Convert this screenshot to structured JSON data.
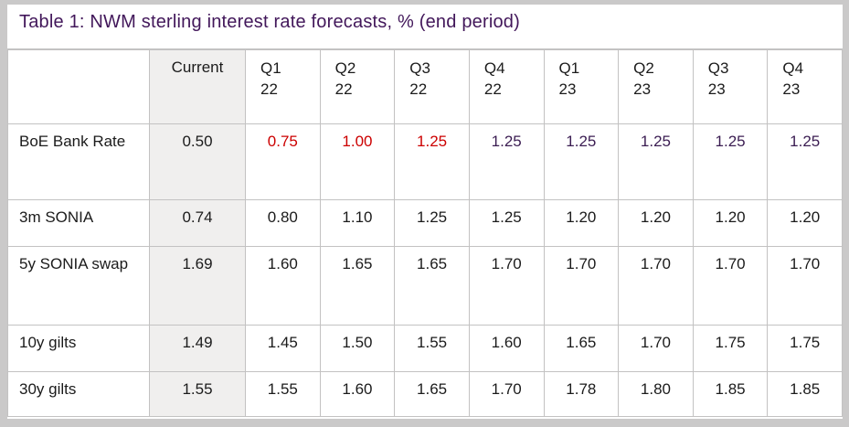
{
  "title": "Table 1: NWM sterling interest rate forecasts, % (end period)",
  "colors": {
    "title_purple": "#42175a",
    "value_purple": "#3b1d52",
    "value_red": "#cc0000",
    "grid": "#c3c2c2",
    "frame": "#cac9c9",
    "current_column_bg": "#f0efee",
    "text": "#1b1b1b"
  },
  "table": {
    "header": [
      "",
      "Current",
      "Q1\n22",
      "Q2\n22",
      "Q3\n22",
      "Q4\n22",
      "Q1\n23",
      "Q2\n23",
      "Q3\n23",
      "Q4\n23"
    ],
    "rows": [
      {
        "label": "BoE Bank Rate",
        "cells": [
          {
            "text": "0.50",
            "color": "black"
          },
          {
            "text": "0.75",
            "color": "red"
          },
          {
            "text": "1.00",
            "color": "red"
          },
          {
            "text": "1.25",
            "color": "red"
          },
          {
            "text": "1.25",
            "color": "purple"
          },
          {
            "text": "1.25",
            "color": "purple"
          },
          {
            "text": "1.25",
            "color": "purple"
          },
          {
            "text": "1.25",
            "color": "purple"
          },
          {
            "text": "1.25",
            "color": "purple"
          }
        ]
      },
      {
        "label": "3m SONIA",
        "cells": [
          {
            "text": "0.74",
            "color": "black"
          },
          {
            "text": "0.80",
            "color": "black"
          },
          {
            "text": "1.10",
            "color": "black"
          },
          {
            "text": "1.25",
            "color": "black"
          },
          {
            "text": "1.25",
            "color": "black"
          },
          {
            "text": "1.20",
            "color": "black"
          },
          {
            "text": "1.20",
            "color": "black"
          },
          {
            "text": "1.20",
            "color": "black"
          },
          {
            "text": "1.20",
            "color": "black"
          }
        ]
      },
      {
        "label": "5y SONIA swap",
        "cells": [
          {
            "text": "1.69",
            "color": "black"
          },
          {
            "text": "1.60",
            "color": "black"
          },
          {
            "text": "1.65",
            "color": "black"
          },
          {
            "text": "1.65",
            "color": "black"
          },
          {
            "text": "1.70",
            "color": "black"
          },
          {
            "text": "1.70",
            "color": "black"
          },
          {
            "text": "1.70",
            "color": "black"
          },
          {
            "text": "1.70",
            "color": "black"
          },
          {
            "text": "1.70",
            "color": "black"
          }
        ]
      },
      {
        "label": "10y gilts",
        "cells": [
          {
            "text": "1.49",
            "color": "black"
          },
          {
            "text": "1.45",
            "color": "black"
          },
          {
            "text": "1.50",
            "color": "black"
          },
          {
            "text": "1.55",
            "color": "black"
          },
          {
            "text": "1.60",
            "color": "black"
          },
          {
            "text": "1.65",
            "color": "black"
          },
          {
            "text": "1.70",
            "color": "black"
          },
          {
            "text": "1.75",
            "color": "black"
          },
          {
            "text": "1.75",
            "color": "black"
          }
        ]
      },
      {
        "label": "30y gilts",
        "cells": [
          {
            "text": "1.55",
            "color": "black"
          },
          {
            "text": "1.55",
            "color": "black"
          },
          {
            "text": "1.60",
            "color": "black"
          },
          {
            "text": "1.65",
            "color": "black"
          },
          {
            "text": "1.70",
            "color": "black"
          },
          {
            "text": "1.78",
            "color": "black"
          },
          {
            "text": "1.80",
            "color": "black"
          },
          {
            "text": "1.85",
            "color": "black"
          },
          {
            "text": "1.85",
            "color": "black"
          }
        ]
      }
    ]
  }
}
